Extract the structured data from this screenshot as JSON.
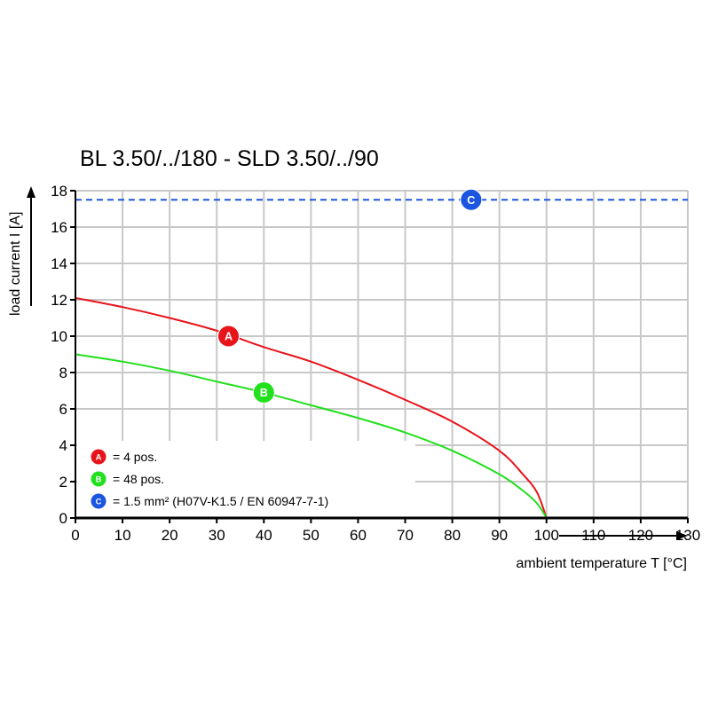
{
  "chart_data": {
    "type": "line",
    "title": "BL 3.50/../180 - SLD 3.50/../90",
    "xlabel": "ambient temperature T [°C]",
    "ylabel": "load current I [A]",
    "xlim": [
      0,
      130
    ],
    "ylim": [
      0,
      18
    ],
    "x_ticks": [
      "0",
      "10",
      "20",
      "30",
      "40",
      "50",
      "60",
      "70",
      "80",
      "90",
      "100",
      "110",
      "120",
      "130"
    ],
    "y_ticks": [
      "0",
      "2",
      "4",
      "6",
      "8",
      "10",
      "12",
      "14",
      "16",
      "18"
    ],
    "grid": true,
    "legend_placement": "bottom-left",
    "series": [
      {
        "marker": "A",
        "color": "#e8141b",
        "x": [
          0,
          10,
          20,
          30,
          40,
          50,
          60,
          70,
          80,
          90,
          95,
          98,
          100
        ],
        "y": [
          12.1,
          11.6,
          11.0,
          10.3,
          9.4,
          8.6,
          7.6,
          6.5,
          5.3,
          3.7,
          2.4,
          1.4,
          0
        ]
      },
      {
        "marker": "B",
        "color": "#22e01e",
        "x": [
          0,
          10,
          20,
          30,
          40,
          50,
          60,
          70,
          80,
          90,
          95,
          98,
          100
        ],
        "y": [
          9.0,
          8.6,
          8.1,
          7.5,
          6.9,
          6.2,
          5.5,
          4.7,
          3.7,
          2.4,
          1.5,
          0.8,
          0
        ]
      },
      {
        "marker": "C",
        "color": "#1a56e0",
        "style": "dashed",
        "x": [
          0,
          130
        ],
        "y": [
          17.5,
          17.5
        ]
      }
    ],
    "markers": [
      {
        "label": "A",
        "x": 32.5,
        "y": 10.0,
        "color": "#e8141b"
      },
      {
        "label": "B",
        "x": 40,
        "y": 6.9,
        "color": "#22e01e"
      },
      {
        "label": "C",
        "x": 84,
        "y": 17.5,
        "color": "#1a56e0"
      }
    ],
    "legend": [
      {
        "label": "A",
        "text": "= 4 pos.",
        "color": "#e8141b"
      },
      {
        "label": "B",
        "text": "= 48 pos.",
        "color": "#22e01e"
      },
      {
        "label": "C",
        "text": "= 1.5 mm² (H07V-K1.5 / EN 60947-7-1)",
        "color": "#1a56e0"
      }
    ]
  }
}
